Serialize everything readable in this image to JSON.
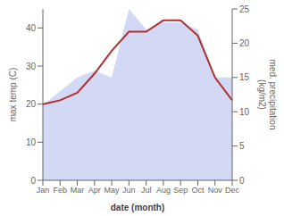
{
  "chart_data": {
    "type": "line",
    "xlabel": "date (month)",
    "ylabel": "max temp (C)",
    "y2label": "med. precipitation\n(kg/m2)",
    "categories": [
      "Jan",
      "Feb",
      "Mar",
      "Apr",
      "May",
      "Jun",
      "Jul",
      "Aug",
      "Sep",
      "Oct",
      "Nov",
      "Dec"
    ],
    "series": [
      {
        "type": "area",
        "axis": "y2",
        "color": "#c0c8f0",
        "values": [
          11,
          13,
          15,
          16,
          15,
          25,
          22,
          23,
          23,
          22,
          15,
          15
        ]
      },
      {
        "type": "line",
        "color": "#b03030",
        "values": [
          20,
          21,
          23,
          28,
          34,
          39,
          39,
          42,
          42,
          38,
          27,
          21
        ]
      }
    ],
    "ylim": [
      0,
      45
    ],
    "yticks": [
      0,
      10,
      20,
      30,
      40
    ],
    "y2lim": [
      0,
      25
    ],
    "y2ticks": [
      0,
      5,
      10,
      15,
      20,
      25
    ],
    "grid": false
  }
}
